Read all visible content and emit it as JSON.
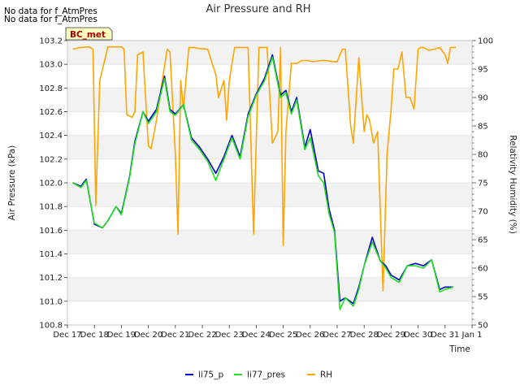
{
  "notes": {
    "line1": "No data for f_AtmPres",
    "line2": "No data for f_AtmPres"
  },
  "site_badge": "BC_met",
  "chart_data": {
    "type": "line",
    "title": "Air Pressure and RH",
    "xlabel": "Time",
    "ylabel": "Air Pressure (kPa)",
    "y2label": "Relativity Humidity (%)",
    "x_tick_labels": [
      "Dec 17",
      "Dec 18",
      "Dec 19",
      "Dec 20",
      "Dec 21",
      "Dec 22",
      "Dec 23",
      "Dec 24",
      "Dec 25",
      "Dec 26",
      "Dec 27",
      "Dec 28",
      "Dec 29",
      "Dec 30",
      "Dec 31",
      "Jan 1"
    ],
    "x_range_days": [
      0,
      15
    ],
    "ylim": [
      100.8,
      103.2
    ],
    "y_ticks": [
      100.8,
      101.0,
      101.2,
      101.4,
      101.6,
      101.8,
      102.0,
      102.2,
      102.4,
      102.6,
      102.8,
      103.0,
      103.2
    ],
    "y_tick_labels": [
      "100.8",
      "101.0",
      "101.2",
      "101.4",
      "101.6",
      "101.8",
      "102.0",
      "102.2",
      "102.4",
      "102.6",
      "102.8",
      "103.0",
      "103.2"
    ],
    "y2lim": [
      50,
      100
    ],
    "y2_ticks": [
      50,
      55,
      60,
      65,
      70,
      75,
      80,
      85,
      90,
      95,
      100
    ],
    "y2_tick_labels": [
      "50",
      "55",
      "60",
      "65",
      "70",
      "75",
      "80",
      "85",
      "90",
      "95",
      "100"
    ],
    "series": [
      {
        "name": "li75_p",
        "color": "#0000cc",
        "axis": "left",
        "x": [
          0.2,
          0.5,
          0.7,
          1.0,
          1.3,
          1.5,
          1.8,
          2.0,
          2.3,
          2.5,
          2.8,
          3.0,
          3.3,
          3.6,
          3.8,
          4.0,
          4.3,
          4.6,
          4.9,
          5.2,
          5.5,
          5.8,
          6.1,
          6.4,
          6.7,
          7.0,
          7.3,
          7.6,
          7.9,
          8.1,
          8.3,
          8.5,
          8.8,
          9.0,
          9.3,
          9.5,
          9.7,
          9.9,
          10.1,
          10.3,
          10.6,
          10.8,
          11.0,
          11.3,
          11.6,
          11.8,
          12.0,
          12.3,
          12.6,
          12.9,
          13.2,
          13.5,
          13.8,
          14.0,
          14.3
        ],
        "y": [
          102.0,
          101.97,
          102.03,
          101.65,
          101.62,
          101.68,
          101.8,
          101.74,
          102.05,
          102.35,
          102.6,
          102.52,
          102.62,
          102.9,
          102.62,
          102.58,
          102.66,
          102.38,
          102.3,
          102.2,
          102.08,
          102.22,
          102.4,
          102.22,
          102.58,
          102.75,
          102.88,
          103.08,
          102.74,
          102.78,
          102.6,
          102.72,
          102.3,
          102.45,
          102.1,
          102.08,
          101.78,
          101.6,
          101.0,
          101.03,
          100.98,
          101.12,
          101.3,
          101.54,
          101.34,
          101.3,
          101.22,
          101.18,
          101.3,
          101.32,
          101.3,
          101.35,
          101.1,
          101.12,
          101.12
        ]
      },
      {
        "name": "li77_pres",
        "color": "#22dd22",
        "axis": "left",
        "x": [
          0.2,
          0.5,
          0.7,
          1.0,
          1.3,
          1.5,
          1.8,
          2.0,
          2.3,
          2.5,
          2.8,
          3.0,
          3.3,
          3.6,
          3.8,
          4.0,
          4.3,
          4.6,
          4.9,
          5.2,
          5.5,
          5.8,
          6.1,
          6.4,
          6.7,
          7.0,
          7.3,
          7.6,
          7.9,
          8.1,
          8.3,
          8.5,
          8.8,
          9.0,
          9.3,
          9.5,
          9.7,
          9.9,
          10.1,
          10.3,
          10.6,
          10.8,
          11.0,
          11.3,
          11.6,
          11.8,
          12.0,
          12.3,
          12.6,
          12.9,
          13.2,
          13.5,
          13.8,
          14.0,
          14.3
        ],
        "y": [
          102.0,
          101.96,
          102.02,
          101.66,
          101.62,
          101.68,
          101.8,
          101.73,
          102.04,
          102.33,
          102.6,
          102.5,
          102.6,
          102.88,
          102.6,
          102.57,
          102.66,
          102.36,
          102.28,
          102.18,
          102.02,
          102.2,
          102.38,
          102.2,
          102.56,
          102.74,
          102.86,
          103.06,
          102.72,
          102.76,
          102.58,
          102.7,
          102.28,
          102.38,
          102.06,
          102.0,
          101.74,
          101.58,
          100.93,
          101.03,
          100.96,
          101.1,
          101.3,
          101.5,
          101.34,
          101.28,
          101.2,
          101.16,
          101.3,
          101.3,
          101.28,
          101.35,
          101.08,
          101.1,
          101.12
        ]
      },
      {
        "name": "RH",
        "color": "#ffa500",
        "axis": "right",
        "x": [
          0.2,
          0.5,
          0.8,
          0.95,
          1.05,
          1.2,
          1.5,
          1.8,
          2.0,
          2.1,
          2.2,
          2.4,
          2.5,
          2.6,
          2.8,
          3.0,
          3.1,
          3.3,
          3.5,
          3.7,
          3.8,
          4.0,
          4.1,
          4.2,
          4.3,
          4.5,
          4.7,
          4.9,
          5.2,
          5.5,
          5.6,
          5.8,
          5.9,
          6.0,
          6.2,
          6.4,
          6.7,
          6.9,
          7.1,
          7.2,
          7.4,
          7.6,
          7.8,
          7.9,
          8.0,
          8.1,
          8.3,
          8.5,
          8.7,
          8.9,
          9.1,
          9.4,
          9.6,
          9.8,
          10.0,
          10.1,
          10.2,
          10.3,
          10.5,
          10.6,
          10.8,
          11.0,
          11.1,
          11.2,
          11.35,
          11.5,
          11.7,
          11.85,
          12.0,
          12.1,
          12.25,
          12.4,
          12.55,
          12.7,
          12.85,
          13.0,
          13.1,
          13.2,
          13.4,
          13.6,
          13.8,
          14.0,
          14.1,
          14.2,
          14.4
        ],
        "y": [
          98.5,
          98.8,
          98.9,
          98.5,
          71.0,
          93.0,
          98.9,
          98.9,
          98.9,
          98.5,
          87.0,
          86.5,
          87.5,
          97.5,
          98.0,
          81.5,
          81.0,
          86.0,
          92.5,
          98.5,
          98.0,
          80.0,
          66.0,
          93.0,
          88.0,
          98.8,
          98.8,
          98.6,
          98.5,
          94.0,
          90.0,
          93.0,
          86.0,
          93.0,
          98.8,
          98.8,
          98.8,
          66.0,
          98.8,
          98.8,
          98.8,
          82.0,
          84.0,
          98.8,
          64.0,
          84.0,
          96.0,
          96.0,
          96.5,
          96.5,
          96.3,
          96.5,
          96.5,
          96.3,
          96.3,
          97.5,
          98.5,
          98.5,
          85.0,
          82.0,
          97.0,
          84.0,
          87.0,
          86.0,
          82.0,
          84.0,
          56.0,
          80.0,
          88.0,
          95.0,
          95.0,
          98.0,
          90.0,
          90.0,
          88.0,
          98.5,
          98.8,
          98.8,
          98.3,
          98.5,
          98.8,
          97.5,
          96.0,
          98.8,
          98.8
        ]
      }
    ],
    "legend_position": "bottom-center",
    "grid": "alternating horizontal bands"
  }
}
